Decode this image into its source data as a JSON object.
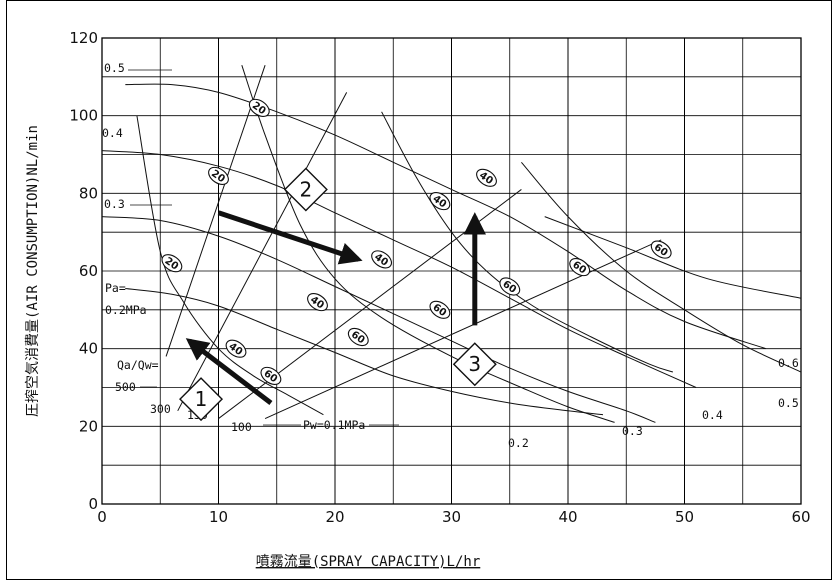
{
  "chart_data": {
    "type": "line",
    "title": "",
    "xlabel": "噴霧流量(SPRAY CAPACITY)L/hr",
    "ylabel": "圧搾空気消費量(AIR CONSUMPTION)NL/min",
    "xlim": [
      0,
      60
    ],
    "ylim": [
      0,
      120
    ],
    "x_ticks": [
      "0",
      "10",
      "20",
      "30",
      "40",
      "50",
      "60"
    ],
    "y_ticks": [
      "0",
      "20",
      "40",
      "60",
      "80",
      "100",
      "120"
    ],
    "grid": true,
    "air_pressure_label": "Pa=",
    "water_pressure_label": "Pw=0.1MPa",
    "ratio_label": "Qa/Qw=",
    "air_pressure_curves": [
      {
        "label": "0.2MPa",
        "points": [
          [
            2,
            55.5
          ],
          [
            6,
            54
          ],
          [
            10,
            51
          ],
          [
            15,
            45
          ],
          [
            20,
            39
          ],
          [
            25,
            33
          ],
          [
            30,
            29
          ],
          [
            35,
            26
          ],
          [
            40,
            24
          ],
          [
            43,
            23
          ]
        ]
      },
      {
        "label": "0.3",
        "points": [
          [
            0,
            74
          ],
          [
            5,
            73
          ],
          [
            10,
            69
          ],
          [
            15,
            63
          ],
          [
            20,
            56
          ],
          [
            25,
            49
          ],
          [
            30,
            42
          ],
          [
            35,
            35
          ],
          [
            40,
            29
          ],
          [
            45,
            24
          ],
          [
            47.5,
            21
          ]
        ]
      },
      {
        "label": "0.4",
        "points": [
          [
            0,
            91
          ],
          [
            5,
            90
          ],
          [
            10,
            87
          ],
          [
            15,
            82
          ],
          [
            20,
            75
          ],
          [
            25,
            68
          ],
          [
            30,
            61
          ],
          [
            35,
            53
          ],
          [
            40,
            45
          ],
          [
            45,
            38
          ],
          [
            51,
            30
          ]
        ]
      },
      {
        "label": "0.5",
        "points": [
          [
            2,
            108
          ],
          [
            6,
            108
          ],
          [
            10,
            106
          ],
          [
            15,
            101
          ],
          [
            20,
            95
          ],
          [
            25,
            88
          ],
          [
            30,
            81
          ],
          [
            35,
            74
          ],
          [
            40,
            65
          ],
          [
            45,
            55
          ],
          [
            50,
            47
          ],
          [
            57,
            40
          ]
        ]
      },
      {
        "label": "0.6",
        "points": [
          [
            38,
            74
          ],
          [
            45,
            66
          ],
          [
            52,
            58
          ],
          [
            60,
            53
          ]
        ]
      }
    ],
    "water_pressure_curves": [
      {
        "label": "Pw=0.1MPa",
        "points": [
          [
            3,
            100
          ],
          [
            5,
            65
          ],
          [
            7,
            52
          ],
          [
            10,
            40
          ],
          [
            13,
            33
          ],
          [
            16,
            28
          ],
          [
            19,
            23
          ]
        ]
      },
      {
        "label": "0.2",
        "points": [
          [
            12,
            113
          ],
          [
            14,
            95
          ],
          [
            17,
            72
          ],
          [
            20,
            58
          ],
          [
            24,
            48
          ],
          [
            30,
            38
          ],
          [
            36,
            30
          ],
          [
            40,
            25
          ],
          [
            44,
            21
          ]
        ]
      },
      {
        "label": "0.3",
        "points": [
          [
            24,
            101
          ],
          [
            27,
            84
          ],
          [
            30,
            70
          ],
          [
            33,
            60
          ],
          [
            37,
            51
          ],
          [
            42,
            43
          ],
          [
            47,
            36
          ],
          [
            49,
            34
          ]
        ]
      },
      {
        "label": "0.4",
        "points": [
          [
            36,
            88
          ],
          [
            40,
            74
          ],
          [
            45,
            60
          ],
          [
            50,
            50
          ],
          [
            55,
            41
          ],
          [
            60,
            34
          ]
        ]
      }
    ],
    "ratio_lines": [
      {
        "label": "500",
        "points": [
          [
            5.5,
            38
          ],
          [
            14,
            113
          ]
        ]
      },
      {
        "label": "300",
        "points": [
          [
            6.5,
            24
          ],
          [
            21,
            106
          ]
        ]
      },
      {
        "label": "150",
        "points": [
          [
            10,
            22
          ],
          [
            36,
            81
          ]
        ]
      },
      {
        "label": "100",
        "points": [
          [
            14,
            22
          ],
          [
            48,
            68
          ]
        ]
      }
    ],
    "angle_markers": [
      {
        "text": "20",
        "x": 13.5,
        "y": 102
      },
      {
        "text": "20",
        "x": 6,
        "y": 62
      },
      {
        "text": "20",
        "x": 10,
        "y": 84.5
      },
      {
        "text": "40",
        "x": 11.5,
        "y": 40
      },
      {
        "text": "60",
        "x": 14.5,
        "y": 33
      },
      {
        "text": "40",
        "x": 18.5,
        "y": 52
      },
      {
        "text": "40",
        "x": 24,
        "y": 63
      },
      {
        "text": "60",
        "x": 22,
        "y": 43
      },
      {
        "text": "40",
        "x": 29,
        "y": 78
      },
      {
        "text": "60",
        "x": 29,
        "y": 50
      },
      {
        "text": "40",
        "x": 33,
        "y": 84
      },
      {
        "text": "60",
        "x": 35,
        "y": 56
      },
      {
        "text": "60",
        "x": 41,
        "y": 61
      },
      {
        "text": "60",
        "x": 48,
        "y": 65.5
      }
    ],
    "steps": [
      {
        "number": "1",
        "box": [
          8.5,
          27
        ],
        "arrow_from": [
          14.5,
          26
        ],
        "arrow_to": [
          7.5,
          42
        ]
      },
      {
        "number": "2",
        "box": [
          17.5,
          81
        ],
        "arrow_from": [
          10,
          75
        ],
        "arrow_to": [
          22,
          63
        ]
      },
      {
        "number": "3",
        "box": [
          32,
          36
        ],
        "arrow_from": [
          32,
          46
        ],
        "arrow_to": [
          32,
          74
        ]
      }
    ]
  }
}
